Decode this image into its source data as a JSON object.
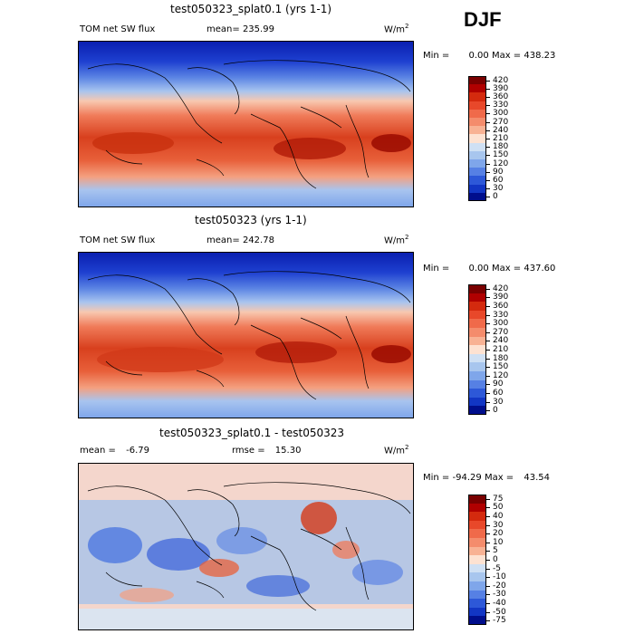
{
  "season": "DJF",
  "panels": [
    {
      "title": "test050323_splat0.1 (yrs 1-1)",
      "left_label": "TOM net SW flux",
      "stat_label": "mean=",
      "stat_value": "235.99",
      "units": "W/m",
      "units_exp": "2",
      "min_label": "Min =",
      "min_value": "0.00",
      "max_label": "Max =",
      "max_value": "438.23",
      "colorbar": [
        "420",
        "390",
        "360",
        "330",
        "300",
        "270",
        "240",
        "210",
        "180",
        "150",
        "120",
        "90",
        "60",
        "30",
        "0"
      ]
    },
    {
      "title": "test050323 (yrs 1-1)",
      "left_label": "TOM net SW flux",
      "stat_label": "mean=",
      "stat_value": "242.78",
      "units": "W/m",
      "units_exp": "2",
      "min_label": "Min =",
      "min_value": "0.00",
      "max_label": "Max =",
      "max_value": "437.60",
      "colorbar": [
        "420",
        "390",
        "360",
        "330",
        "300",
        "270",
        "240",
        "210",
        "180",
        "150",
        "120",
        "90",
        "60",
        "30",
        "0"
      ]
    },
    {
      "title": "test050323_splat0.1 - test050323",
      "left_label": "mean =",
      "stat_label": "rmse =",
      "stat_value": "15.30",
      "left_value": "-6.79",
      "units": "W/m",
      "units_exp": "2",
      "min_label": "Min =",
      "min_value": "-94.29",
      "max_label": "Max =",
      "max_value": "43.54",
      "colorbar": [
        "75",
        "50",
        "40",
        "30",
        "20",
        "10",
        "5",
        "0",
        "-5",
        "-10",
        "-20",
        "-30",
        "-40",
        "-50",
        "-75"
      ]
    }
  ],
  "colors": {
    "abs_scale": [
      "#7a0000",
      "#b00000",
      "#d42a0e",
      "#e8482a",
      "#f06a4a",
      "#f48c6c",
      "#f8b294",
      "#fde2d2",
      "#cfe0f4",
      "#a8c6ee",
      "#7fa6ea",
      "#5680e4",
      "#2d58d8",
      "#1236c4",
      "#000e8c"
    ],
    "diff_scale": [
      "#7a0000",
      "#b00000",
      "#d42a0e",
      "#e8482a",
      "#f06a4a",
      "#f48c6c",
      "#f8b294",
      "#fde2d2",
      "#cfe0f4",
      "#a8c6ee",
      "#7fa6ea",
      "#5680e4",
      "#2d58d8",
      "#1236c4",
      "#000e8c"
    ]
  }
}
